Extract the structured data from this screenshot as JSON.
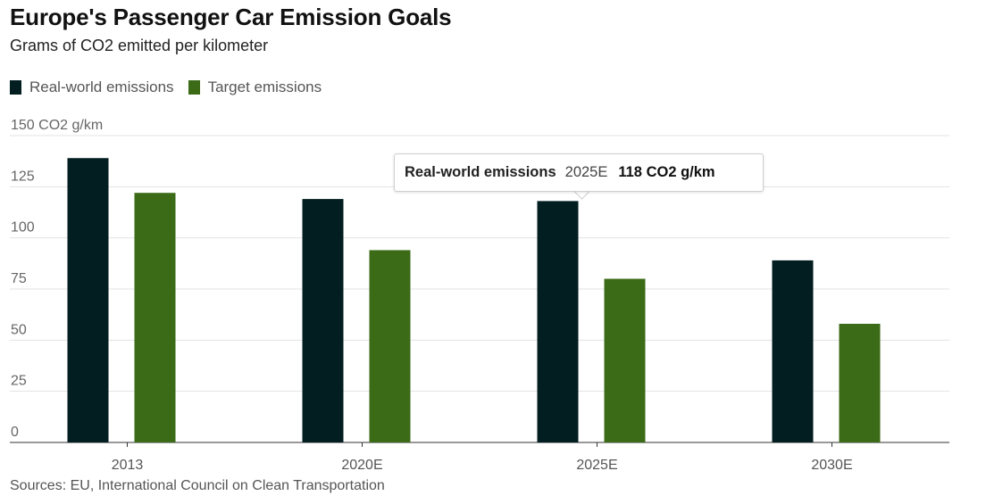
{
  "chart_data": {
    "type": "bar",
    "title": "Europe's Passenger Car Emission Goals",
    "subtitle": "Grams of CO2 emitted per kilometer",
    "ylabel": "150 CO2 g/km",
    "xlabel": "",
    "ylim": [
      0,
      150
    ],
    "yticks": [
      {
        "value": 150,
        "label": "150 CO2 g/km"
      },
      {
        "value": 125,
        "label": "125"
      },
      {
        "value": 100,
        "label": "100"
      },
      {
        "value": 75,
        "label": "75"
      },
      {
        "value": 50,
        "label": "50"
      },
      {
        "value": 25,
        "label": "25"
      },
      {
        "value": 0,
        "label": "0"
      }
    ],
    "categories": [
      "2013",
      "2020E",
      "2025E",
      "2030E"
    ],
    "series": [
      {
        "name": "Real-world emissions",
        "color": "#031e20",
        "values": [
          139,
          119,
          118,
          89
        ]
      },
      {
        "name": "Target emissions",
        "color": "#3b6b17",
        "values": [
          122,
          94,
          80,
          58
        ]
      }
    ],
    "grid": true,
    "legend": "top-left",
    "source": "Sources: EU, International Council on Clean Transportation",
    "tooltip": {
      "series": "Real-world emissions",
      "category": "2025E",
      "value": "118 CO2 g/km"
    }
  }
}
